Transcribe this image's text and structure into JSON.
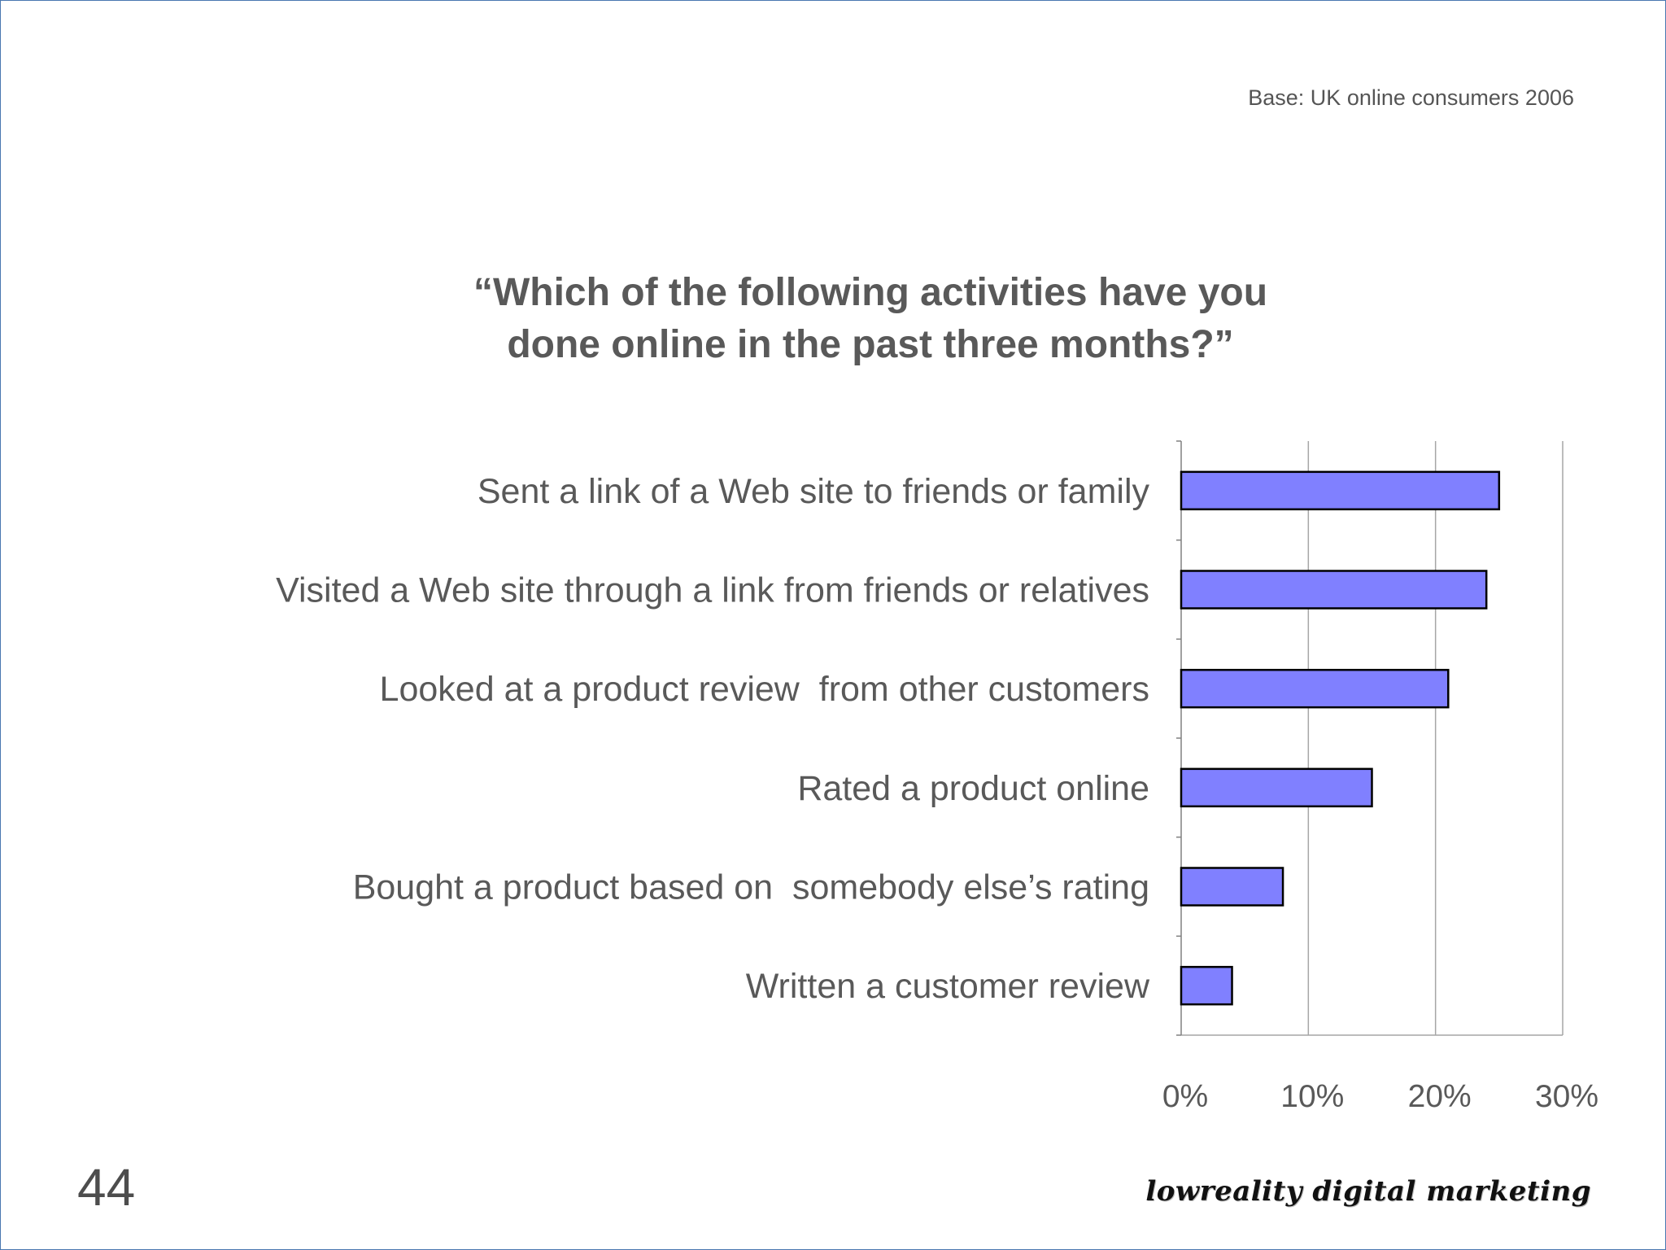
{
  "slide": {
    "base_note": "Base: UK online consumers 2006",
    "page_number": "44",
    "brand": "lowreality digital marketing"
  },
  "chart_data": {
    "type": "bar",
    "orientation": "horizontal",
    "title": "“Which of the following activities have you done online in the past three months?”",
    "title_lines": [
      "“Which of the following activities have you",
      "done online in the past three months?”"
    ],
    "categories": [
      "Sent a link of a Web site to friends or family",
      "Visited a Web site through a link from friends or relatives",
      "Looked at a product review  from other customers",
      "Rated a product online",
      "Bought a product based on  somebody else’s rating",
      "Written a customer review"
    ],
    "values": [
      25,
      24,
      21,
      15,
      8,
      4
    ],
    "unit": "%",
    "xlim": [
      0,
      30
    ],
    "x_ticks": [
      0,
      10,
      20,
      30
    ],
    "x_tick_labels": [
      "0%",
      "10%",
      "20%",
      "30%"
    ],
    "grid": "vertical",
    "legend": "none",
    "bar_color": "#8080ff",
    "bar_edge_color": "#000000"
  }
}
